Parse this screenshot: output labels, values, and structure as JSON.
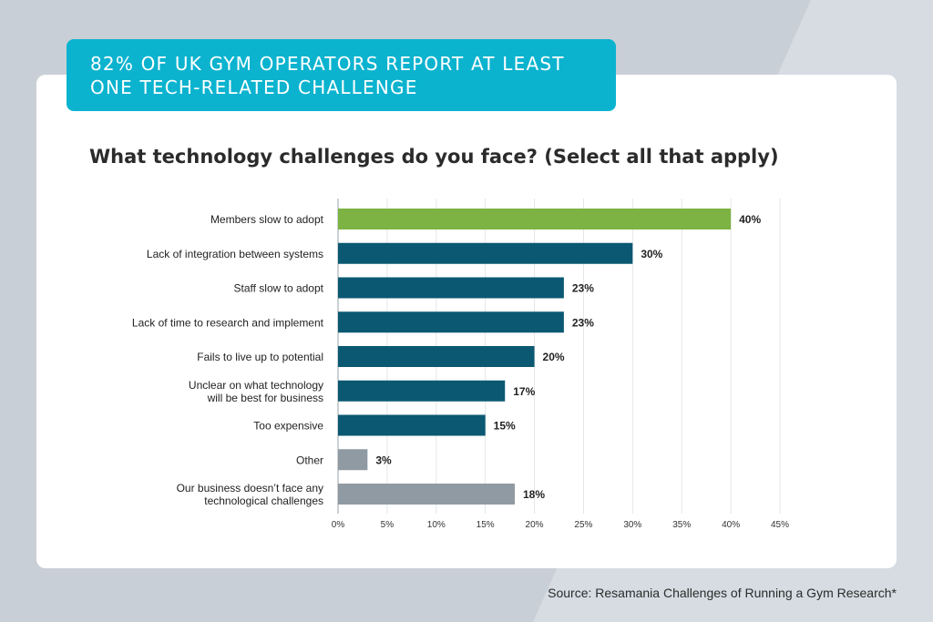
{
  "banner": {
    "line1": "82% of UK gym operators report at least",
    "line2": "one tech-related challenge"
  },
  "colors": {
    "highlight": "#7cb342",
    "primary": "#0b5872",
    "muted": "#8f9aa3",
    "banner": "#0bb3cf"
  },
  "chart_data": {
    "type": "bar",
    "orientation": "horizontal",
    "title": "What technology challenges do you face? (Select all that apply)",
    "categories": [
      [
        "Members slow to adopt"
      ],
      [
        "Lack of integration between systems"
      ],
      [
        "Staff slow to adopt"
      ],
      [
        "Lack of time to research and implement"
      ],
      [
        "Fails to live up to potential"
      ],
      [
        "Unclear on what technology",
        "will be best for business"
      ],
      [
        "Too expensive"
      ],
      [
        "Other"
      ],
      [
        "Our business doesn’t face any",
        "technological challenges"
      ]
    ],
    "values": [
      40,
      30,
      23,
      23,
      20,
      17,
      15,
      3,
      18
    ],
    "value_labels": [
      "40%",
      "30%",
      "23%",
      "23%",
      "20%",
      "17%",
      "15%",
      "3%",
      "18%"
    ],
    "bar_color_roles": [
      "highlight",
      "primary",
      "primary",
      "primary",
      "primary",
      "primary",
      "primary",
      "muted",
      "muted"
    ],
    "xlim": [
      0,
      45
    ],
    "xticks": [
      0,
      5,
      10,
      15,
      20,
      25,
      30,
      35,
      40,
      45
    ],
    "xtick_labels": [
      "0%",
      "5%",
      "10%",
      "15%",
      "20%",
      "25%",
      "30%",
      "35%",
      "40%",
      "45%"
    ],
    "grid": true,
    "legend": "none"
  },
  "footer": {
    "source": "Source: Resamania Challenges of Running a Gym Research*"
  }
}
